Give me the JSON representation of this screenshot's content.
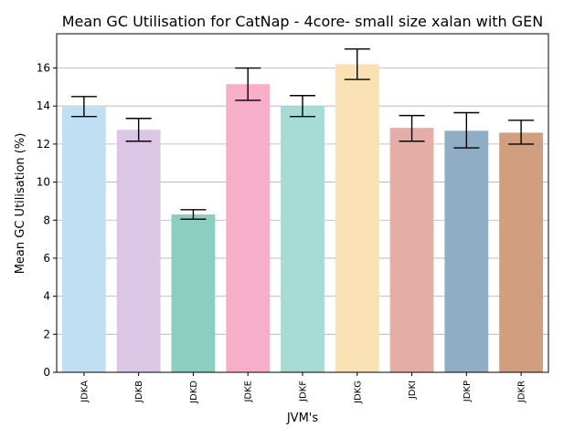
{
  "chart_data": {
    "type": "bar",
    "title": "Mean GC Utilisation for CatNap - 4core- small size xalan with GEN",
    "xlabel": "JVM's",
    "ylabel": "Mean GC Utilisation (%)",
    "ylim": [
      0,
      17.8
    ],
    "yticks": [
      0,
      2,
      4,
      6,
      8,
      10,
      12,
      14,
      16
    ],
    "grid": "horizontal",
    "categories": [
      "JDKA",
      "JDKB",
      "JDKD",
      "JDKE",
      "JDKF",
      "JDKG",
      "JDKI",
      "JDKP",
      "JDKR"
    ],
    "values": [
      13.95,
      12.75,
      8.3,
      15.15,
      14.0,
      16.2,
      12.85,
      12.7,
      12.6
    ],
    "error_low": [
      13.45,
      12.15,
      8.05,
      14.3,
      13.45,
      15.4,
      12.15,
      11.8,
      12.0
    ],
    "error_high": [
      14.5,
      13.35,
      8.55,
      16.0,
      14.55,
      17.0,
      13.5,
      13.65,
      13.25
    ],
    "colors": [
      "#c1dff3",
      "#dcc6e6",
      "#8ccfc0",
      "#f7aec8",
      "#a7dbd6",
      "#fae1b4",
      "#e4aea6",
      "#8fadc4",
      "#d19f80"
    ]
  }
}
